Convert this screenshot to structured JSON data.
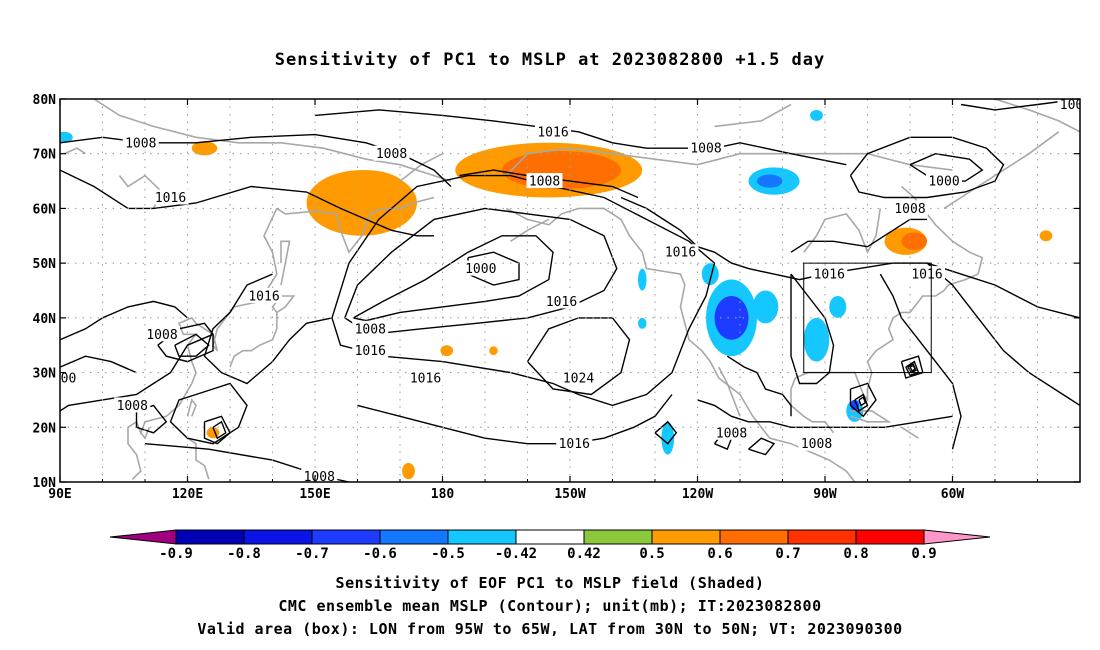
{
  "title": "Sensitivity of PC1 to MSLP at 2023082800 +1.5 day",
  "map": {
    "lon_range": [
      90,
      330
    ],
    "lat_range": [
      10,
      80
    ],
    "lat_ticks": [
      {
        "value": 80,
        "label": "80N"
      },
      {
        "value": 70,
        "label": "70N"
      },
      {
        "value": 60,
        "label": "60N"
      },
      {
        "value": 50,
        "label": "50N"
      },
      {
        "value": 40,
        "label": "40N"
      },
      {
        "value": 30,
        "label": "30N"
      },
      {
        "value": 20,
        "label": "20N"
      },
      {
        "value": 10,
        "label": "10N"
      }
    ],
    "lon_ticks": [
      {
        "value": 90,
        "label": "90E"
      },
      {
        "value": 120,
        "label": "120E"
      },
      {
        "value": 150,
        "label": "150E"
      },
      {
        "value": 180,
        "label": "180"
      },
      {
        "value": 210,
        "label": "150W"
      },
      {
        "value": 240,
        "label": "120W"
      },
      {
        "value": 270,
        "label": "90W"
      },
      {
        "value": 300,
        "label": "60W"
      }
    ],
    "grid_style": "dotted",
    "valid_box": {
      "lon_min": 265,
      "lon_max": 295,
      "lat_min": 30,
      "lat_max": 50
    },
    "contour_labels": [
      {
        "text": "1008",
        "lon": 109,
        "lat": 72
      },
      {
        "text": "1016",
        "lon": 116,
        "lat": 62
      },
      {
        "text": "1008",
        "lon": 168,
        "lat": 70
      },
      {
        "text": "1016",
        "lon": 206,
        "lat": 74
      },
      {
        "text": "1008",
        "lon": 204,
        "lat": 65
      },
      {
        "text": "1008",
        "lon": 242,
        "lat": 71
      },
      {
        "text": "1000",
        "lon": 298,
        "lat": 65
      },
      {
        "text": "1008",
        "lon": 290,
        "lat": 60
      },
      {
        "text": "1016",
        "lon": 236,
        "lat": 52
      },
      {
        "text": "1016",
        "lon": 271,
        "lat": 48
      },
      {
        "text": "1016",
        "lon": 294,
        "lat": 48
      },
      {
        "text": "1000",
        "lon": 189,
        "lat": 49
      },
      {
        "text": "1016",
        "lon": 138,
        "lat": 44
      },
      {
        "text": "1016",
        "lon": 208,
        "lat": 43
      },
      {
        "text": "1008",
        "lon": 114,
        "lat": 37
      },
      {
        "text": "1008",
        "lon": 163,
        "lat": 38
      },
      {
        "text": "1016",
        "lon": 163,
        "lat": 34
      },
      {
        "text": "1016",
        "lon": 176,
        "lat": 29
      },
      {
        "text": "1024",
        "lon": 212,
        "lat": 29
      },
      {
        "text": "1008",
        "lon": 107,
        "lat": 24
      },
      {
        "text": "1008",
        "lon": 248,
        "lat": 19
      },
      {
        "text": "1008",
        "lon": 268,
        "lat": 17
      },
      {
        "text": "1016",
        "lon": 211,
        "lat": 17
      },
      {
        "text": "1008",
        "lon": 151,
        "lat": 11
      },
      {
        "text": "00",
        "lon": 92,
        "lat": 29
      },
      {
        "text": "100",
        "lon": 328,
        "lat": 79
      }
    ],
    "colors": {
      "contour": "#000000",
      "coast": "#a8a8a8",
      "grid": "#a0a0a0",
      "land_hint": "#ffffff"
    }
  },
  "colorbar": {
    "boundaries": [
      "-0.9",
      "-0.8",
      "-0.7",
      "-0.6",
      "-0.5",
      "-0.42",
      "0.42",
      "0.5",
      "0.6",
      "0.7",
      "0.8",
      "0.9"
    ],
    "colors": [
      "#a0007f",
      "#0000b4",
      "#0a14e6",
      "#1e3cff",
      "#1478ff",
      "#14c8ff",
      "#ffffff",
      "#8cc83c",
      "#ff9a00",
      "#ff6e00",
      "#ff3200",
      "#ff0000",
      "#ff96c8"
    ]
  },
  "shading": [
    {
      "value": 0.55,
      "lon": 162,
      "lat": 63,
      "rx": 10,
      "ry": 4
    },
    {
      "value": 0.5,
      "lon": 161,
      "lat": 61,
      "rx": 13,
      "ry": 6
    },
    {
      "value": 0.5,
      "lon": 205,
      "lat": 67,
      "rx": 22,
      "ry": 5
    },
    {
      "value": 0.6,
      "lon": 208,
      "lat": 67,
      "rx": 14,
      "ry": 3.5
    },
    {
      "value": 0.5,
      "lon": 124,
      "lat": 71,
      "rx": 3,
      "ry": 1.3
    },
    {
      "value": 0.5,
      "lon": 190,
      "lat": 67,
      "rx": 3,
      "ry": 1.2
    },
    {
      "value": 0.5,
      "lon": 289,
      "lat": 54,
      "rx": 5,
      "ry": 2.5
    },
    {
      "value": 0.6,
      "lon": 291,
      "lat": 54,
      "rx": 3,
      "ry": 1.6
    },
    {
      "value": 0.5,
      "lon": 181,
      "lat": 34,
      "rx": 1.5,
      "ry": 1
    },
    {
      "value": 0.5,
      "lon": 172,
      "lat": 12,
      "rx": 1.5,
      "ry": 1.5
    },
    {
      "value": 0.5,
      "lon": 192,
      "lat": 34,
      "rx": 1,
      "ry": 0.8
    },
    {
      "value": 0.5,
      "lon": 126,
      "lat": 19,
      "rx": 1.5,
      "ry": 1
    },
    {
      "value": 0.5,
      "lon": 322,
      "lat": 55,
      "rx": 1.5,
      "ry": 1
    },
    {
      "value": -0.5,
      "lon": 248,
      "lat": 40,
      "rx": 6,
      "ry": 7
    },
    {
      "value": -0.7,
      "lon": 248,
      "lat": 40,
      "rx": 4,
      "ry": 4
    },
    {
      "value": -0.5,
      "lon": 243,
      "lat": 48,
      "rx": 2,
      "ry": 2
    },
    {
      "value": -0.5,
      "lon": 256,
      "lat": 42,
      "rx": 3,
      "ry": 3
    },
    {
      "value": -0.5,
      "lon": 268,
      "lat": 36,
      "rx": 3,
      "ry": 4
    },
    {
      "value": -0.5,
      "lon": 273,
      "lat": 42,
      "rx": 2,
      "ry": 2
    },
    {
      "value": -0.5,
      "lon": 258,
      "lat": 65,
      "rx": 6,
      "ry": 2.5
    },
    {
      "value": -0.6,
      "lon": 257,
      "lat": 65,
      "rx": 3,
      "ry": 1.2
    },
    {
      "value": -0.5,
      "lon": 233,
      "lat": 18,
      "rx": 1.5,
      "ry": 3
    },
    {
      "value": -0.5,
      "lon": 277,
      "lat": 23,
      "rx": 2,
      "ry": 2
    },
    {
      "value": -0.7,
      "lon": 277,
      "lat": 24,
      "rx": 1,
      "ry": 1
    },
    {
      "value": -0.5,
      "lon": 91,
      "lat": 73,
      "rx": 2,
      "ry": 1
    },
    {
      "value": -0.5,
      "lon": 268,
      "lat": 77,
      "rx": 1.5,
      "ry": 1
    },
    {
      "value": -0.5,
      "lon": 227,
      "lat": 47,
      "rx": 1,
      "ry": 2
    },
    {
      "value": -0.5,
      "lon": 227,
      "lat": 39,
      "rx": 1,
      "ry": 1
    }
  ],
  "captions": [
    "Sensitivity of EOF PC1 to MSLP field (Shaded)",
    "CMC ensemble mean MSLP (Contour); unit(mb); IT:2023082800",
    "Valid area (box): LON from 95W to 65W, LAT from 30N to 50N; VT: 2023090300"
  ]
}
